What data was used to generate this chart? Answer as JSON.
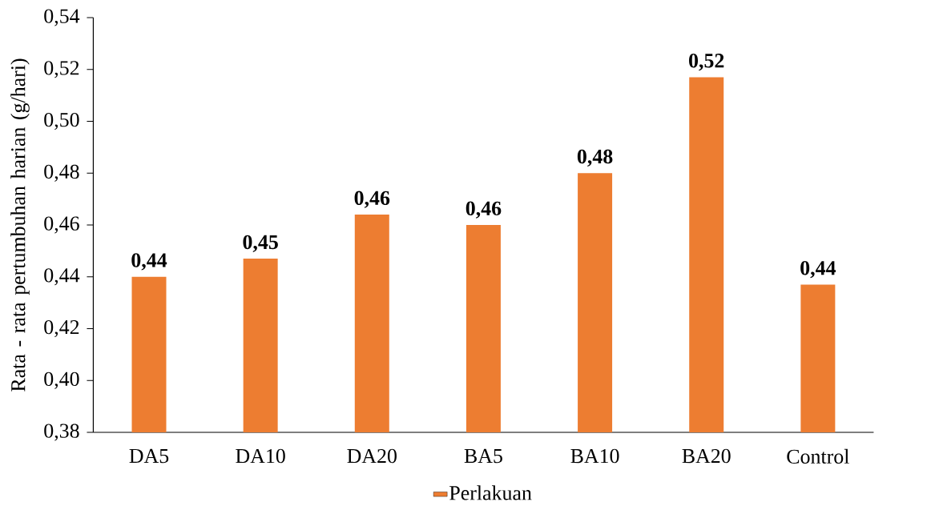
{
  "chart_data": {
    "type": "bar",
    "categories": [
      "DA5",
      "DA10",
      "DA20",
      "BA5",
      "BA10",
      "BA20",
      "Control"
    ],
    "series": [
      {
        "name": "Perlakuan",
        "color": "#ed7d31",
        "values": [
          0.44,
          0.447,
          0.464,
          0.46,
          0.48,
          0.517,
          0.437
        ],
        "value_labels": [
          "0,44",
          "0,45",
          "0,46",
          "0,46",
          "0,48",
          "0,52",
          "0,44"
        ]
      }
    ],
    "ylabel": "Rata -  rata pertumbuhan harian (g/hari)",
    "ylim": [
      0.38,
      0.54
    ],
    "yticks": [
      {
        "value": 0.38,
        "label": "0,38"
      },
      {
        "value": 0.4,
        "label": "0,40"
      },
      {
        "value": 0.42,
        "label": "0,42"
      },
      {
        "value": 0.44,
        "label": "0,44"
      },
      {
        "value": 0.46,
        "label": "0,46"
      },
      {
        "value": 0.48,
        "label": "0,48"
      },
      {
        "value": 0.5,
        "label": "0,50"
      },
      {
        "value": 0.52,
        "label": "0,52"
      },
      {
        "value": 0.54,
        "label": "0,54"
      }
    ],
    "grid": false,
    "legend": "bottom"
  }
}
